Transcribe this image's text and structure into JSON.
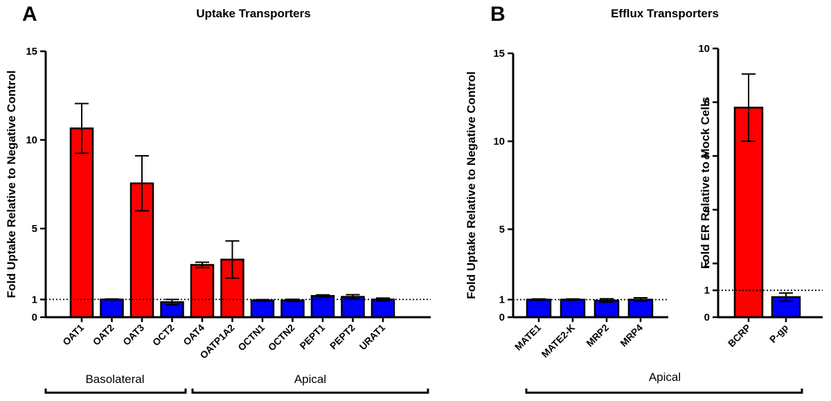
{
  "panels": {
    "a_letter": "A",
    "a_title": "Uptake Transporters",
    "b_letter": "B",
    "b_title": "Efflux Transporters"
  },
  "groups": {
    "basolateral": "Basolateral",
    "apical_a": "Apical",
    "apical_b": "Apical"
  },
  "colors": {
    "red": "#ff0000",
    "blue": "#0000ff"
  },
  "chart_data": [
    {
      "type": "bar",
      "ylabel": "Fold Uptake Relative to Negative Control",
      "ylim": [
        0,
        15
      ],
      "yticks": [
        0,
        1,
        5,
        10,
        15
      ],
      "reference_line": 1,
      "categories": [
        "OAT1",
        "OAT2",
        "OAT3",
        "OCT2",
        "OAT4",
        "OATP1A2",
        "OCTN1",
        "OCTN2",
        "PEPT1",
        "PEPT2",
        "URAT1"
      ],
      "values": [
        10.65,
        1.0,
        7.55,
        0.85,
        2.95,
        3.25,
        0.95,
        0.95,
        1.2,
        1.15,
        1.0
      ],
      "errors": [
        1.4,
        0.03,
        1.55,
        0.15,
        0.15,
        1.05,
        0.04,
        0.06,
        0.06,
        0.12,
        0.08
      ],
      "colors": [
        "red",
        "blue",
        "red",
        "blue",
        "red",
        "red",
        "blue",
        "blue",
        "blue",
        "blue",
        "blue"
      ]
    },
    {
      "type": "bar",
      "ylabel": "Fold Uptake Relative to Negative Control",
      "ylim": [
        0,
        15
      ],
      "yticks": [
        0,
        1,
        5,
        10,
        15
      ],
      "reference_line": 1,
      "categories": [
        "MATE1",
        "MATE2-K",
        "MRP2",
        "MRP4"
      ],
      "values": [
        1.0,
        1.0,
        0.95,
        1.0
      ],
      "errors": [
        0.04,
        0.04,
        0.1,
        0.1
      ],
      "colors": [
        "blue",
        "blue",
        "blue",
        "blue"
      ]
    },
    {
      "type": "bar",
      "ylabel": "Fold ER Relative to Mock Cells",
      "ylim": [
        0,
        10
      ],
      "yticks": [
        0,
        1,
        2,
        4,
        6,
        8,
        10
      ],
      "reference_line": 1,
      "categories": [
        "BCRP",
        "P-gp"
      ],
      "values": [
        7.8,
        0.75
      ],
      "errors": [
        1.25,
        0.15
      ],
      "colors": [
        "red",
        "blue"
      ]
    }
  ]
}
